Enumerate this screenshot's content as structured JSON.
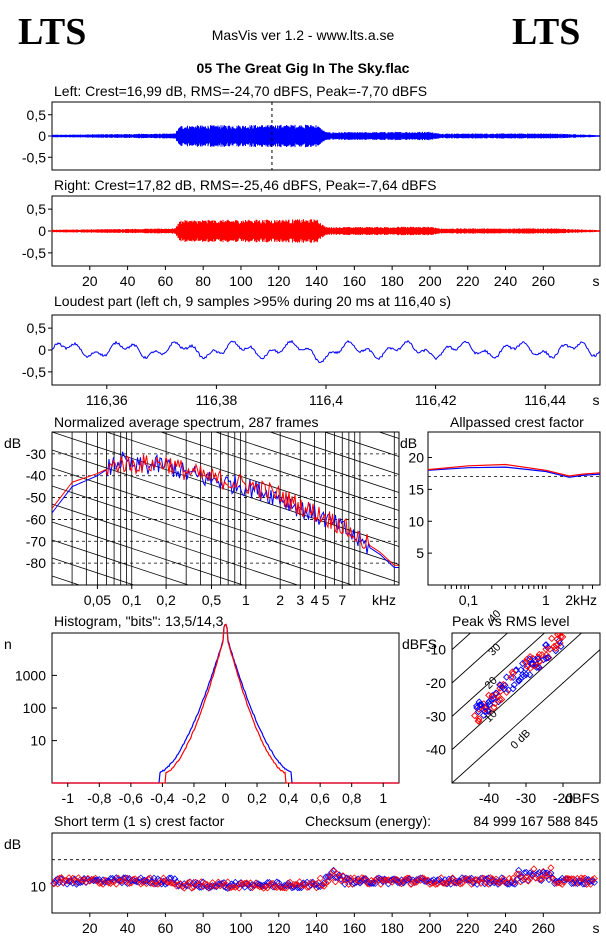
{
  "header": {
    "logo_left": "LTS",
    "app_title": "MasVis ver 1.2 - www.lts.a.se",
    "logo_right": "LTS",
    "file_title": "05 The Great Gig In The Sky.flac"
  },
  "colors": {
    "left": "#0000ff",
    "right": "#ff0000",
    "axis": "#000000"
  },
  "chart_data": [
    {
      "id": "left-waveform",
      "type": "line",
      "title": "Left: Crest=16,99 dB, RMS=-24,70 dBFS, Peak=-7,70 dBFS",
      "ylim": [
        -0.8,
        0.8
      ],
      "yticks": [
        "0,5",
        "0",
        "-0,5"
      ],
      "ytick_values": [
        0.5,
        0,
        -0.5
      ],
      "xlim": [
        0,
        290
      ],
      "series": [
        {
          "values": "waveform envelope (left channel)",
          "envelope": [
            [
              0,
              0.03
            ],
            [
              65,
              0.06
            ],
            [
              68,
              0.25
            ],
            [
              140,
              0.27
            ],
            [
              145,
              0.09
            ],
            [
              200,
              0.1
            ],
            [
              205,
              0.06
            ],
            [
              265,
              0.06
            ],
            [
              290,
              0.02
            ]
          ]
        }
      ],
      "marker_x": 116.4
    },
    {
      "id": "right-waveform",
      "type": "line",
      "title": "Right: Crest=17,82 dB, RMS=-25,46 dBFS, Peak=-7,64 dBFS",
      "ylim": [
        -0.8,
        0.8
      ],
      "yticks": [
        "0,5",
        "0",
        "-0,5"
      ],
      "ytick_values": [
        0.5,
        0,
        -0.5
      ],
      "xlim": [
        0,
        290
      ],
      "xticks": [
        "20",
        "40",
        "60",
        "80",
        "100",
        "120",
        "140",
        "160",
        "180",
        "200",
        "220",
        "240",
        "260"
      ],
      "xtick_values": [
        20,
        40,
        60,
        80,
        100,
        120,
        140,
        160,
        180,
        200,
        220,
        240,
        260
      ],
      "xunit": "s",
      "envelope": [
        [
          0,
          0.03
        ],
        [
          65,
          0.06
        ],
        [
          68,
          0.25
        ],
        [
          140,
          0.27
        ],
        [
          145,
          0.09
        ],
        [
          200,
          0.1
        ],
        [
          205,
          0.06
        ],
        [
          265,
          0.06
        ],
        [
          290,
          0.02
        ]
      ]
    },
    {
      "id": "loudest-part",
      "type": "line",
      "title": "Loudest part (left  ch, 9 samples >95% during 20 ms at 116,40 s)",
      "ylim": [
        -0.8,
        0.8
      ],
      "yticks": [
        "0,5",
        "0",
        "-0,5"
      ],
      "ytick_values": [
        0.5,
        0,
        -0.5
      ],
      "xlim": [
        116.35,
        116.45
      ],
      "xticks": [
        "116,36",
        "116,38",
        "116,4",
        "116,42",
        "116,44"
      ],
      "xtick_values": [
        116.36,
        116.38,
        116.4,
        116.42,
        116.44
      ],
      "xunit": "s"
    },
    {
      "id": "avg-spectrum",
      "type": "line",
      "title": "Normalized average spectrum, 287 frames",
      "ylabel": "dB",
      "ylim": [
        -90,
        -20
      ],
      "yticks": [
        "-30",
        "-40",
        "-50",
        "-60",
        "-70",
        "-80"
      ],
      "ytick_values": [
        -30,
        -40,
        -50,
        -60,
        -70,
        -80
      ],
      "xscale": "log",
      "xlim": [
        0.02,
        22
      ],
      "xticks": [
        "0,05",
        "0,1",
        "0,2",
        "0,5",
        "1",
        "2",
        "3",
        "4",
        "5",
        "7"
      ],
      "xtick_values": [
        0.05,
        0.1,
        0.2,
        0.5,
        1,
        2,
        3,
        4,
        5,
        7
      ],
      "xunit": "kHz",
      "series_left": [
        [
          0.02,
          -57
        ],
        [
          0.03,
          -45
        ],
        [
          0.05,
          -40
        ],
        [
          0.08,
          -33
        ],
        [
          0.1,
          -36
        ],
        [
          0.2,
          -35
        ],
        [
          0.3,
          -39
        ],
        [
          0.5,
          -42
        ],
        [
          1,
          -45
        ],
        [
          2,
          -50
        ],
        [
          3,
          -55
        ],
        [
          5,
          -60
        ],
        [
          7,
          -64
        ],
        [
          10,
          -70
        ],
        [
          15,
          -76
        ],
        [
          20,
          -82
        ]
      ],
      "series_right": [
        [
          0.02,
          -55
        ],
        [
          0.03,
          -43
        ],
        [
          0.05,
          -39
        ],
        [
          0.08,
          -34
        ],
        [
          0.1,
          -35
        ],
        [
          0.2,
          -34
        ],
        [
          0.3,
          -38
        ],
        [
          0.5,
          -41
        ],
        [
          1,
          -44
        ],
        [
          2,
          -49
        ],
        [
          3,
          -54
        ],
        [
          5,
          -59
        ],
        [
          7,
          -63
        ],
        [
          10,
          -69
        ],
        [
          15,
          -75
        ],
        [
          20,
          -81
        ]
      ]
    },
    {
      "id": "crest-factor",
      "type": "line",
      "title": "Allpassed crest factor",
      "ylabel": "dB",
      "ylim": [
        0,
        24
      ],
      "yticks": [
        "20",
        "15",
        "10",
        "5"
      ],
      "ytick_values": [
        20,
        15,
        10,
        5
      ],
      "xscale": "log",
      "xlim": [
        0.03,
        5
      ],
      "xticks": [
        "0,1",
        "1",
        "2"
      ],
      "xtick_values": [
        0.1,
        1,
        2
      ],
      "xunit": "kHz",
      "series_left": [
        [
          0.03,
          18
        ],
        [
          0.1,
          18.4
        ],
        [
          0.3,
          18.5
        ],
        [
          1,
          17.8
        ],
        [
          2,
          16.9
        ],
        [
          3,
          17.2
        ],
        [
          5,
          17.4
        ]
      ],
      "series_right": [
        [
          0.03,
          18.1
        ],
        [
          0.1,
          18.7
        ],
        [
          0.3,
          18.9
        ],
        [
          1,
          18
        ],
        [
          2,
          17.1
        ],
        [
          3,
          17.4
        ],
        [
          5,
          17.6
        ]
      ],
      "ref_line": 17
    },
    {
      "id": "histogram",
      "type": "line",
      "title": "Histogram, \"bits\": 13,5/14,3",
      "ylabel": "n",
      "yscale": "log",
      "yticks": [
        "1000",
        "100",
        "10"
      ],
      "ytick_values": [
        1000,
        100,
        10
      ],
      "xlim": [
        -1.1,
        1.1
      ],
      "xticks": [
        "-1",
        "-0,8",
        "-0,6",
        "-0,4",
        "-0,2",
        "0",
        "0,2",
        "0,4",
        "0,6",
        "0,8",
        "1"
      ],
      "xtick_values": [
        -1,
        -0.8,
        -0.6,
        -0.4,
        -0.2,
        0,
        0.2,
        0.4,
        0.6,
        0.8,
        1
      ]
    },
    {
      "id": "peak-vs-rms",
      "type": "scatter",
      "title": "Peak vs RMS level",
      "ylabel": "dBFS",
      "xlim": [
        -50,
        -10
      ],
      "ylim": [
        -50,
        -5
      ],
      "yticks": [
        "-10",
        "-20",
        "-30",
        "-40"
      ],
      "ytick_values": [
        -10,
        -20,
        -30,
        -40
      ],
      "xticks": [
        "-40",
        "-30",
        "-20"
      ],
      "xtick_values": [
        -40,
        -30,
        -20
      ],
      "xunit": "dBFS",
      "diag_labels": [
        "40",
        "30",
        "20",
        "10",
        "0 dB"
      ],
      "diag_values": [
        40,
        30,
        20,
        10,
        0
      ]
    },
    {
      "id": "short-term-crest",
      "type": "scatter",
      "title": "Short term (1 s) crest factor",
      "checksum_label": "Checksum (energy):",
      "checksum_value": "84 999 167 588 845",
      "ylabel": "dB",
      "ylim": [
        0,
        30
      ],
      "yticks": [
        "10"
      ],
      "ytick_values": [
        10
      ],
      "ref_line": 20,
      "xlim": [
        0,
        290
      ],
      "xticks": [
        "20",
        "40",
        "60",
        "80",
        "100",
        "120",
        "140",
        "160",
        "180",
        "200",
        "220",
        "240",
        "260"
      ],
      "xtick_values": [
        20,
        40,
        60,
        80,
        100,
        120,
        140,
        160,
        180,
        200,
        220,
        240,
        260
      ],
      "xunit": "s"
    }
  ]
}
